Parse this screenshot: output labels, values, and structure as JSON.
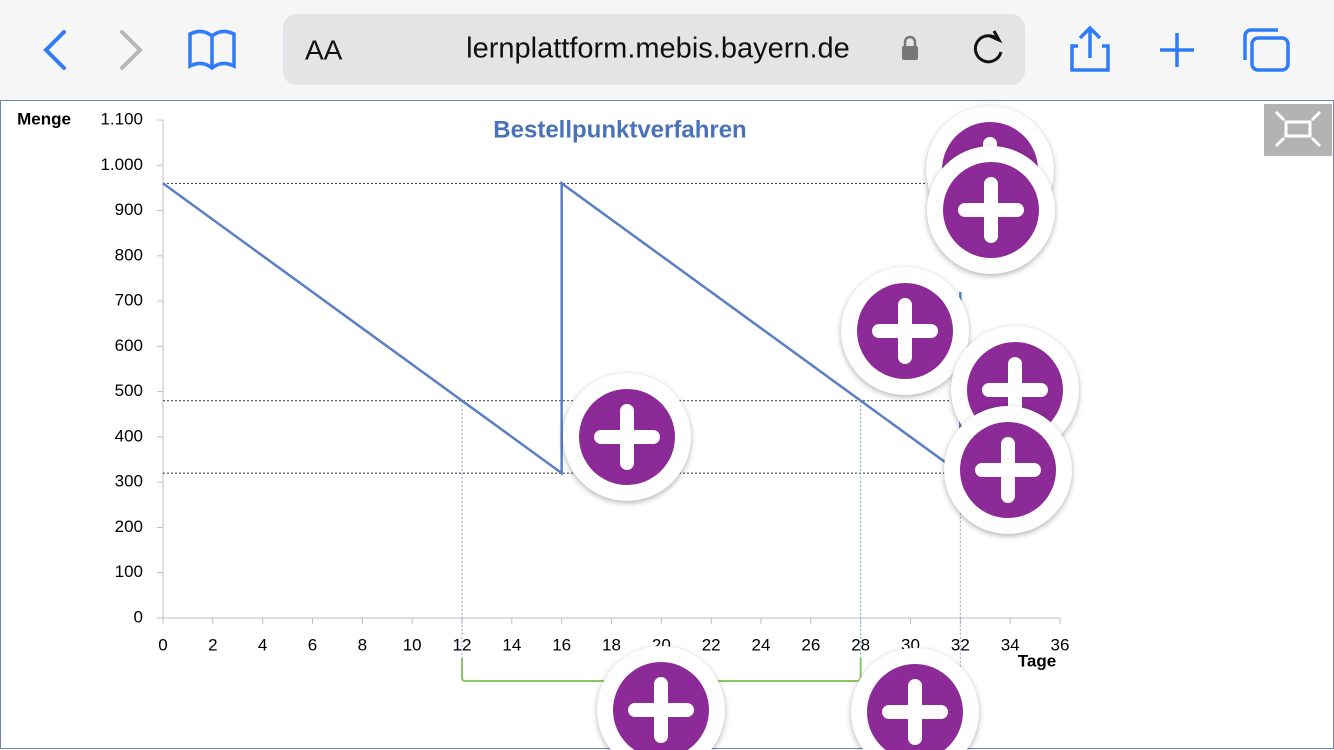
{
  "browser": {
    "text_size_button": "AA",
    "url": "lernplattform.mebis.bayern.de"
  },
  "chart_data": {
    "type": "line",
    "title": "Bestellpunktverfahren",
    "y_label": "Menge",
    "x_label": "Tage",
    "xlim": [
      0,
      36
    ],
    "xticks": [
      0,
      2,
      4,
      6,
      8,
      10,
      12,
      14,
      16,
      18,
      20,
      22,
      24,
      26,
      28,
      30,
      32,
      34,
      36
    ],
    "ylim": [
      0,
      1100
    ],
    "yticks": [
      0,
      100,
      200,
      300,
      400,
      500,
      600,
      700,
      800,
      900,
      {
        "value": 1000,
        "label": "1.000"
      },
      {
        "value": 1100,
        "label": "1.100"
      }
    ],
    "series": [
      {
        "color": "#5b7fc4",
        "x": [
          0,
          16,
          16,
          32,
          32
        ],
        "values": [
          960,
          320,
          960,
          320,
          720
        ]
      }
    ],
    "reference_lines": {
      "y": [
        960,
        480,
        320
      ],
      "x": [
        12,
        28,
        32
      ]
    },
    "bracket": [
      12,
      28
    ]
  }
}
